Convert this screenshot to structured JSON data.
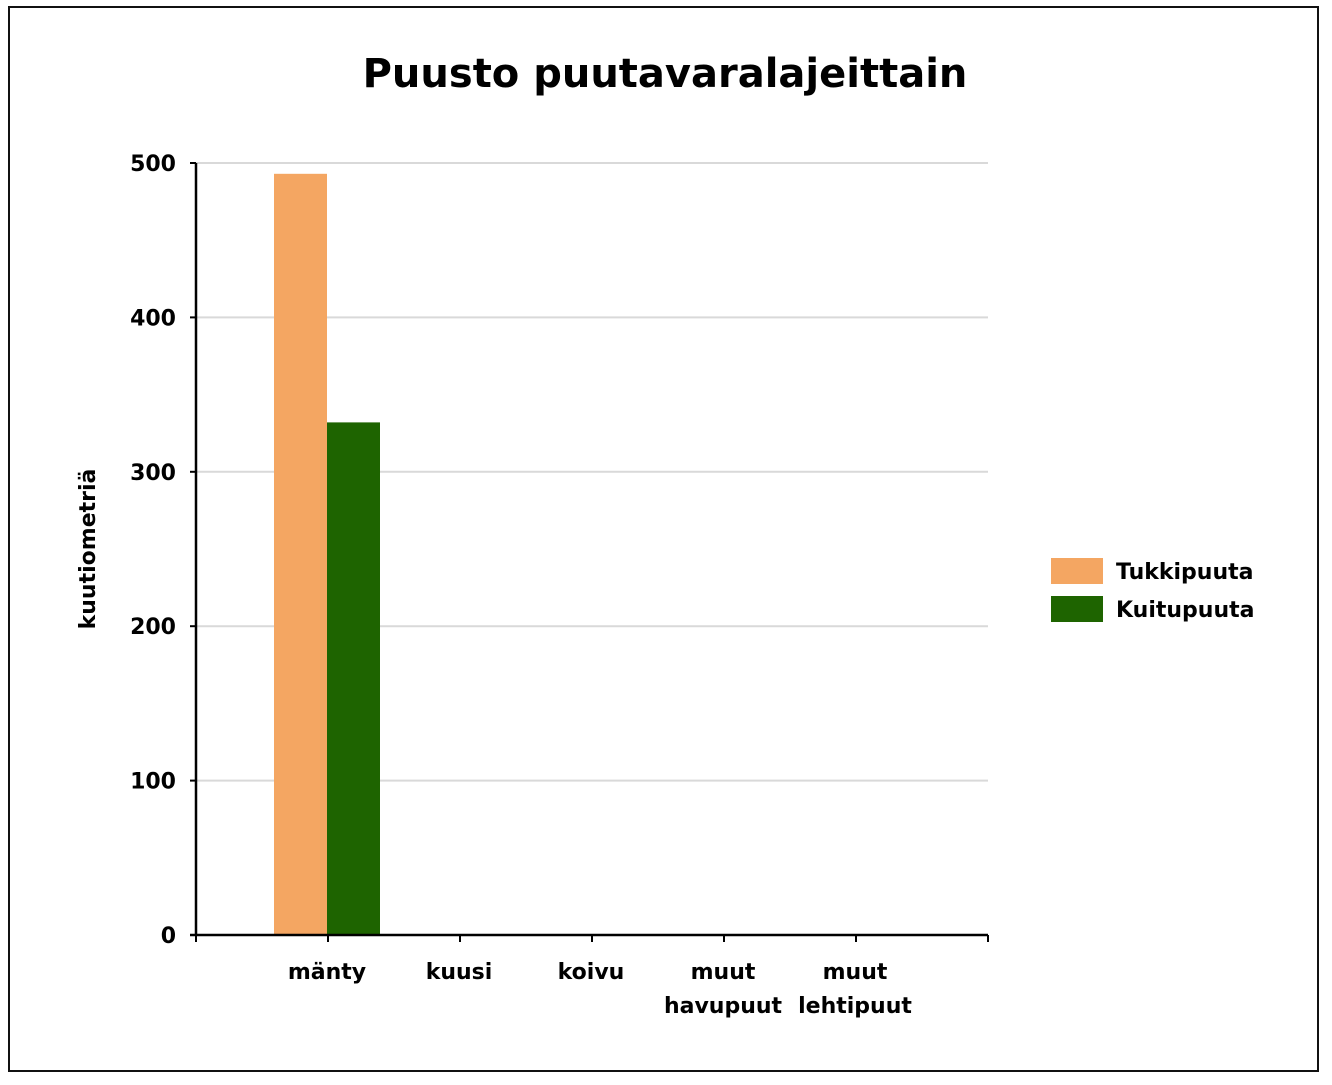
{
  "chart_data": {
    "type": "bar",
    "title": "Puusto puutavaralajeittain",
    "xlabel": "",
    "ylabel": "kuutiometriä",
    "ylim": [
      0,
      500
    ],
    "yticks": [
      0,
      100,
      200,
      300,
      400,
      500
    ],
    "grid": true,
    "legend_position": "right",
    "categories": [
      [
        "mänty"
      ],
      [
        "kuusi"
      ],
      [
        "koivu"
      ],
      [
        "muut",
        "havupuut"
      ],
      [
        "muut",
        "lehtipuut"
      ]
    ],
    "series": [
      {
        "name": "Tukkipuuta",
        "color": "#F4A662",
        "values": [
          493,
          0,
          0,
          0,
          0
        ]
      },
      {
        "name": "Kuitupuuta",
        "color": "#1E6400",
        "values": [
          332,
          0,
          0,
          0,
          0
        ]
      }
    ]
  }
}
